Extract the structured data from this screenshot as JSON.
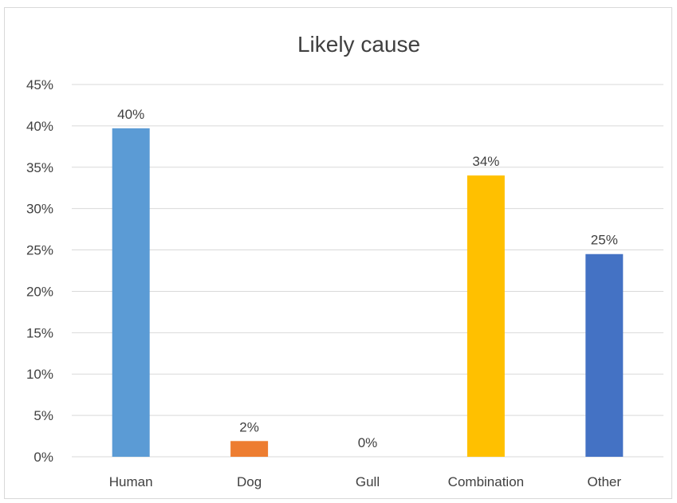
{
  "chart_data": {
    "type": "bar",
    "title": "Likely cause",
    "xlabel": "",
    "ylabel": "",
    "categories": [
      "Human",
      "Dog",
      "Gull",
      "Combination",
      "Other"
    ],
    "values": [
      0.397,
      0.019,
      0.0,
      0.34,
      0.245
    ],
    "data_labels": [
      "40%",
      "2%",
      "0%",
      "34%",
      "25%"
    ],
    "colors": [
      "#5b9bd5",
      "#ed7d31",
      "#a5a5a5",
      "#ffc000",
      "#4472c4"
    ],
    "ylim": [
      0,
      0.45
    ],
    "yticks": [
      0,
      0.05,
      0.1,
      0.15,
      0.2,
      0.25,
      0.3,
      0.35,
      0.4,
      0.45
    ],
    "ytick_labels": [
      "0%",
      "5%",
      "10%",
      "15%",
      "20%",
      "25%",
      "30%",
      "35%",
      "40%",
      "45%"
    ],
    "grid": true,
    "legend": "none"
  }
}
